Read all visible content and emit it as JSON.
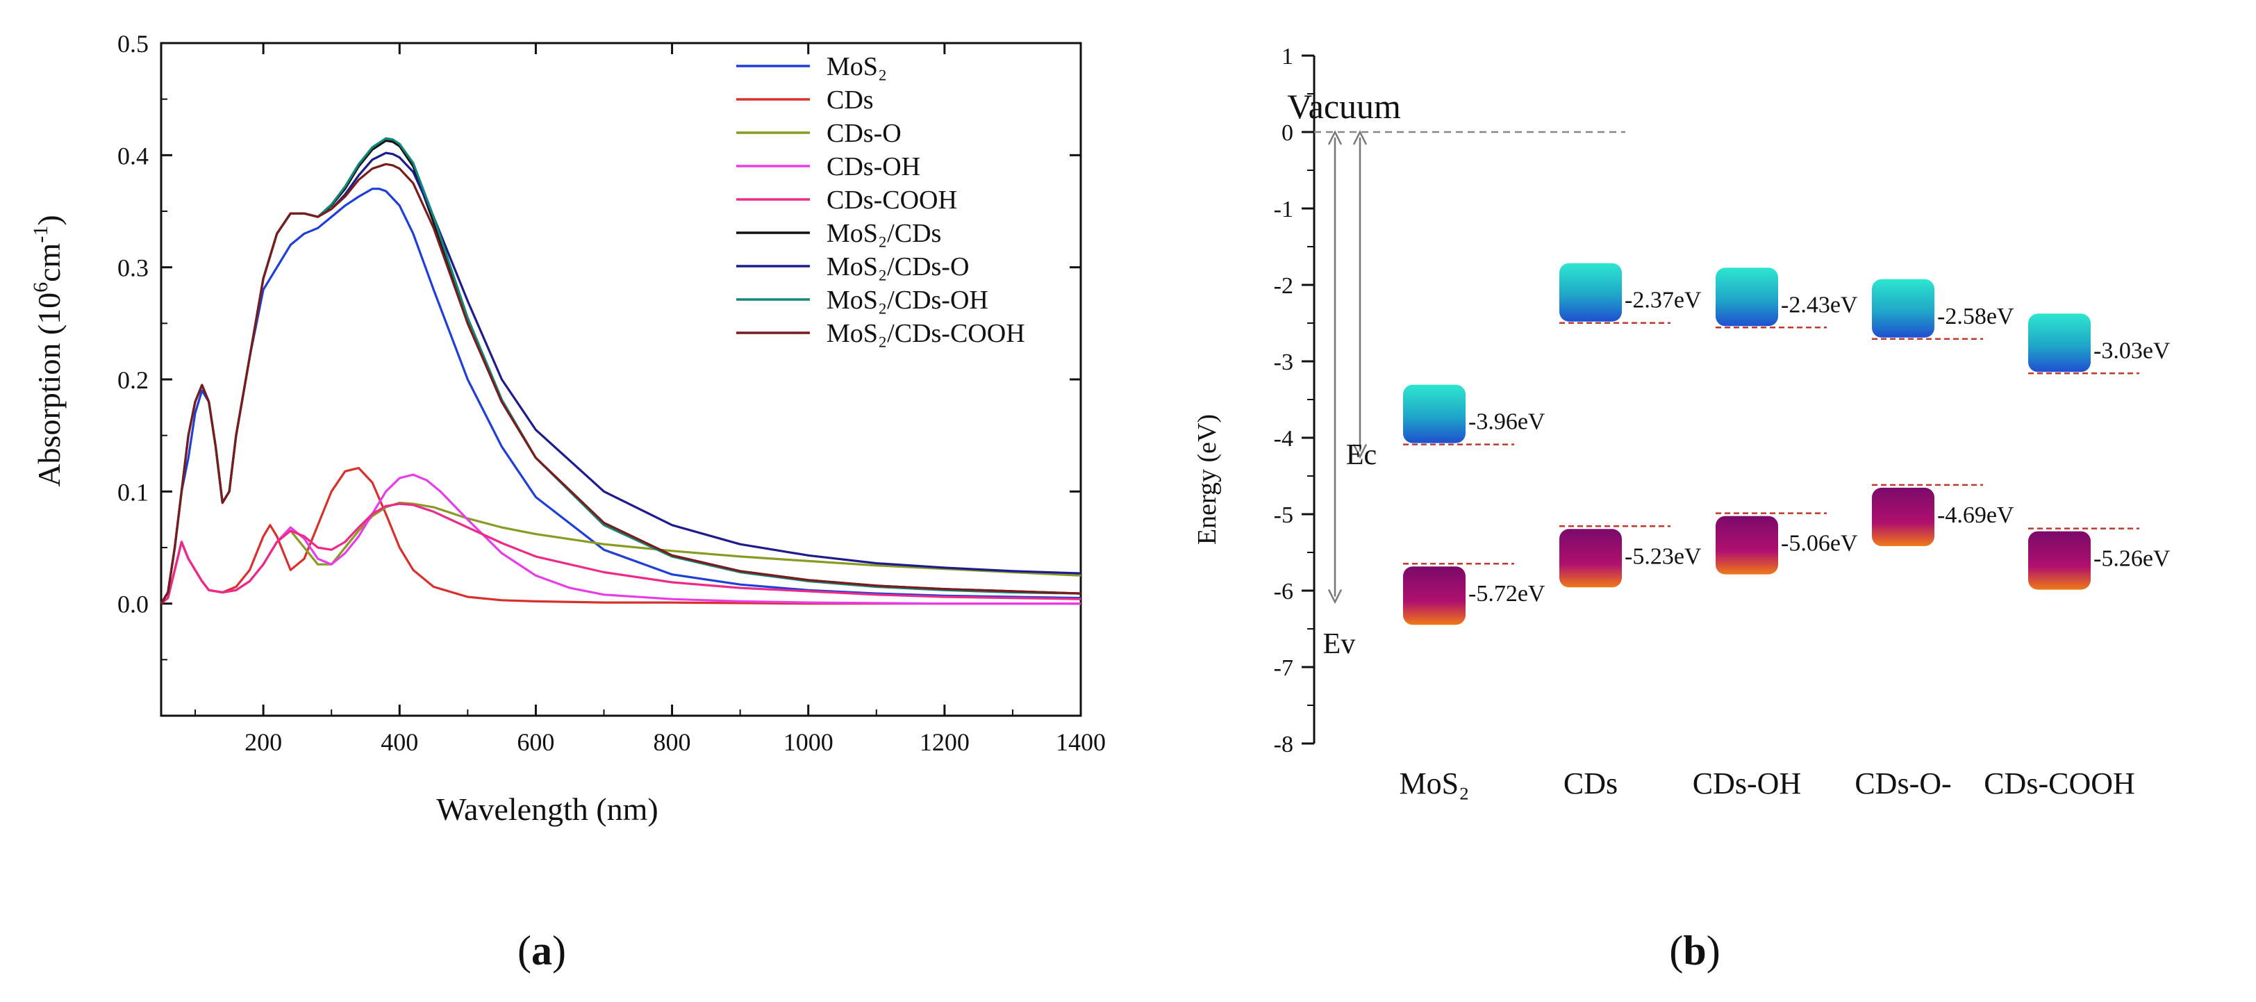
{
  "panel_a": {
    "caption": "a",
    "legend": [
      {
        "name": "MoS₂",
        "color": "#1f3fd6"
      },
      {
        "name": "CDs",
        "color": "#d9302c"
      },
      {
        "name": "CDs-O",
        "color": "#8a9a22"
      },
      {
        "name": "CDs-OH",
        "color": "#e83ce8"
      },
      {
        "name": "CDs-COOH",
        "color": "#ee2a88"
      },
      {
        "name": "MoS₂/CDs",
        "color": "#111111"
      },
      {
        "name": "MoS₂/CDs-O",
        "color": "#1c1c8c"
      },
      {
        "name": "MoS₂/CDs-OH",
        "color": "#14877a"
      },
      {
        "name": "MoS₂/CDs-COOH",
        "color": "#7a1c1c"
      }
    ]
  },
  "panel_b": {
    "caption": "b",
    "vacuum_label": "Vacuum",
    "ec_label": "Ec",
    "ev_label": "Ev"
  },
  "chart_data": [
    {
      "type": "line",
      "title": "",
      "xlabel": "Wavelength (nm)",
      "ylabel_main": "Absorption (10",
      "ylabel_sup": "6",
      "ylabel_mid": "cm",
      "ylabel_sup2": "-1",
      "ylabel_end": ")",
      "xlim": [
        50,
        1400
      ],
      "ylim": [
        -0.1,
        0.5
      ],
      "xticks": [
        200,
        400,
        600,
        800,
        1000,
        1200,
        1400
      ],
      "yticks": [
        0.0,
        0.1,
        0.2,
        0.3,
        0.4,
        0.5
      ],
      "xtick_labels": [
        "200",
        "400",
        "600",
        "800",
        "1000",
        "1200",
        "1400"
      ],
      "ytick_labels": [
        "0.0",
        "0.1",
        "0.2",
        "0.3",
        "0.4",
        "0.5"
      ],
      "series": [
        {
          "name": "MoS₂",
          "color": "#1f3fd6",
          "x": [
            50,
            60,
            70,
            80,
            90,
            100,
            110,
            120,
            130,
            140,
            150,
            160,
            180,
            200,
            220,
            240,
            260,
            280,
            300,
            320,
            340,
            360,
            370,
            380,
            400,
            420,
            450,
            500,
            550,
            600,
            700,
            800,
            900,
            1000,
            1100,
            1200,
            1300,
            1400
          ],
          "y": [
            0,
            0.01,
            0.05,
            0.1,
            0.13,
            0.17,
            0.19,
            0.18,
            0.14,
            0.09,
            0.1,
            0.15,
            0.22,
            0.28,
            0.3,
            0.32,
            0.33,
            0.335,
            0.345,
            0.355,
            0.363,
            0.37,
            0.37,
            0.368,
            0.355,
            0.33,
            0.28,
            0.2,
            0.14,
            0.095,
            0.048,
            0.026,
            0.017,
            0.012,
            0.009,
            0.007,
            0.006,
            0.005
          ]
        },
        {
          "name": "CDs",
          "color": "#d9302c",
          "x": [
            50,
            60,
            70,
            80,
            90,
            100,
            110,
            120,
            140,
            160,
            180,
            200,
            210,
            220,
            240,
            260,
            280,
            300,
            320,
            340,
            360,
            380,
            400,
            420,
            450,
            500,
            550,
            600,
            700,
            800,
            1000,
            1200,
            1400
          ],
          "y": [
            0,
            0.005,
            0.03,
            0.055,
            0.04,
            0.03,
            0.02,
            0.012,
            0.01,
            0.015,
            0.03,
            0.06,
            0.07,
            0.06,
            0.03,
            0.04,
            0.07,
            0.1,
            0.118,
            0.121,
            0.108,
            0.08,
            0.05,
            0.03,
            0.015,
            0.006,
            0.003,
            0.002,
            0.001,
            0.001,
            0.0,
            0.0,
            0.0
          ]
        },
        {
          "name": "CDs-O",
          "color": "#8a9a22",
          "x": [
            50,
            60,
            70,
            80,
            90,
            100,
            110,
            120,
            140,
            160,
            180,
            200,
            220,
            240,
            260,
            280,
            300,
            320,
            340,
            360,
            380,
            400,
            420,
            450,
            500,
            550,
            600,
            700,
            800,
            900,
            1000,
            1100,
            1200,
            1300,
            1400
          ],
          "y": [
            0,
            0.005,
            0.03,
            0.055,
            0.04,
            0.03,
            0.02,
            0.012,
            0.01,
            0.012,
            0.02,
            0.035,
            0.055,
            0.065,
            0.05,
            0.035,
            0.035,
            0.05,
            0.065,
            0.078,
            0.086,
            0.09,
            0.089,
            0.086,
            0.076,
            0.068,
            0.062,
            0.053,
            0.047,
            0.042,
            0.038,
            0.034,
            0.031,
            0.028,
            0.025
          ]
        },
        {
          "name": "CDs-OH",
          "color": "#e83ce8",
          "x": [
            50,
            60,
            70,
            80,
            90,
            100,
            110,
            120,
            140,
            160,
            180,
            200,
            220,
            240,
            260,
            280,
            300,
            320,
            340,
            360,
            380,
            400,
            420,
            440,
            460,
            500,
            550,
            600,
            650,
            700,
            800,
            900,
            1000,
            1200,
            1400
          ],
          "y": [
            0,
            0.005,
            0.03,
            0.055,
            0.04,
            0.03,
            0.02,
            0.012,
            0.01,
            0.012,
            0.02,
            0.035,
            0.055,
            0.068,
            0.058,
            0.04,
            0.035,
            0.045,
            0.06,
            0.08,
            0.1,
            0.112,
            0.115,
            0.11,
            0.1,
            0.075,
            0.045,
            0.025,
            0.014,
            0.008,
            0.004,
            0.002,
            0.001,
            0.0,
            0.0
          ]
        },
        {
          "name": "CDs-COOH",
          "color": "#ee2a88",
          "x": [
            50,
            60,
            70,
            80,
            90,
            100,
            110,
            120,
            140,
            160,
            180,
            200,
            220,
            240,
            260,
            280,
            300,
            320,
            340,
            360,
            380,
            400,
            420,
            450,
            500,
            550,
            600,
            700,
            800,
            900,
            1000,
            1100,
            1200,
            1300,
            1400
          ],
          "y": [
            0,
            0.005,
            0.03,
            0.055,
            0.04,
            0.03,
            0.02,
            0.012,
            0.01,
            0.012,
            0.02,
            0.035,
            0.055,
            0.065,
            0.06,
            0.05,
            0.048,
            0.055,
            0.068,
            0.08,
            0.087,
            0.089,
            0.088,
            0.082,
            0.068,
            0.054,
            0.042,
            0.028,
            0.019,
            0.014,
            0.011,
            0.008,
            0.006,
            0.005,
            0.004
          ]
        },
        {
          "name": "MoS₂/CDs",
          "color": "#111111",
          "x": [
            50,
            60,
            70,
            80,
            90,
            100,
            110,
            120,
            130,
            140,
            150,
            160,
            180,
            200,
            220,
            240,
            260,
            280,
            300,
            320,
            340,
            360,
            380,
            390,
            400,
            420,
            450,
            500,
            550,
            600,
            700,
            800,
            900,
            1000,
            1100,
            1200,
            1300,
            1400
          ],
          "y": [
            0,
            0.01,
            0.05,
            0.1,
            0.15,
            0.18,
            0.195,
            0.18,
            0.14,
            0.09,
            0.1,
            0.15,
            0.22,
            0.29,
            0.33,
            0.348,
            0.348,
            0.345,
            0.355,
            0.37,
            0.39,
            0.405,
            0.413,
            0.412,
            0.408,
            0.39,
            0.34,
            0.25,
            0.18,
            0.13,
            0.072,
            0.043,
            0.029,
            0.021,
            0.016,
            0.013,
            0.011,
            0.009
          ]
        },
        {
          "name": "MoS₂/CDs-O",
          "color": "#1c1c8c",
          "x": [
            50,
            60,
            70,
            80,
            90,
            100,
            110,
            120,
            130,
            140,
            150,
            160,
            180,
            200,
            220,
            240,
            260,
            280,
            300,
            320,
            340,
            360,
            380,
            390,
            400,
            420,
            450,
            500,
            550,
            600,
            700,
            800,
            900,
            1000,
            1100,
            1200,
            1300,
            1400
          ],
          "y": [
            0,
            0.01,
            0.05,
            0.1,
            0.15,
            0.18,
            0.195,
            0.18,
            0.14,
            0.09,
            0.1,
            0.15,
            0.22,
            0.29,
            0.33,
            0.348,
            0.348,
            0.345,
            0.352,
            0.365,
            0.382,
            0.396,
            0.402,
            0.401,
            0.398,
            0.385,
            0.345,
            0.27,
            0.2,
            0.155,
            0.1,
            0.07,
            0.053,
            0.043,
            0.036,
            0.032,
            0.029,
            0.027
          ]
        },
        {
          "name": "MoS₂/CDs-OH",
          "color": "#14877a",
          "x": [
            50,
            60,
            70,
            80,
            90,
            100,
            110,
            120,
            130,
            140,
            150,
            160,
            180,
            200,
            220,
            240,
            260,
            280,
            300,
            320,
            340,
            360,
            380,
            390,
            400,
            420,
            450,
            500,
            550,
            600,
            700,
            800,
            900,
            1000,
            1100,
            1200,
            1300,
            1400
          ],
          "y": [
            0,
            0.01,
            0.05,
            0.1,
            0.15,
            0.18,
            0.195,
            0.18,
            0.14,
            0.09,
            0.1,
            0.15,
            0.22,
            0.29,
            0.33,
            0.348,
            0.348,
            0.345,
            0.356,
            0.372,
            0.392,
            0.407,
            0.415,
            0.414,
            0.41,
            0.393,
            0.345,
            0.255,
            0.182,
            0.13,
            0.07,
            0.042,
            0.028,
            0.02,
            0.015,
            0.012,
            0.01,
            0.009
          ]
        },
        {
          "name": "MoS₂/CDs-COOH",
          "color": "#7a1c1c",
          "x": [
            50,
            60,
            70,
            80,
            90,
            100,
            110,
            120,
            130,
            140,
            150,
            160,
            180,
            200,
            220,
            240,
            260,
            280,
            300,
            320,
            340,
            360,
            380,
            390,
            400,
            420,
            450,
            500,
            550,
            600,
            700,
            800,
            900,
            1000,
            1100,
            1200,
            1300,
            1400
          ],
          "y": [
            0,
            0.01,
            0.05,
            0.1,
            0.15,
            0.18,
            0.195,
            0.18,
            0.14,
            0.09,
            0.1,
            0.15,
            0.22,
            0.29,
            0.33,
            0.348,
            0.348,
            0.345,
            0.352,
            0.363,
            0.378,
            0.388,
            0.392,
            0.391,
            0.388,
            0.375,
            0.335,
            0.25,
            0.18,
            0.13,
            0.072,
            0.043,
            0.029,
            0.021,
            0.016,
            0.013,
            0.011,
            0.009
          ]
        }
      ]
    },
    {
      "type": "energy-level-diagram",
      "title": "",
      "ylabel": "Energy (eV)",
      "ylim": [
        -8,
        1
      ],
      "yticks": [
        1,
        0,
        -1,
        -2,
        -3,
        -4,
        -5,
        -6,
        -7,
        -8
      ],
      "ytick_labels": [
        "1",
        "0",
        "-1",
        "-2",
        "-3",
        "-4",
        "-5",
        "-6",
        "-7",
        "-8"
      ],
      "vacuum_level": 0,
      "materials": [
        {
          "name": "MoS₂",
          "conduction": -3.96,
          "valence": -5.72,
          "cb_label": "-3.96eV",
          "vb_label": "-5.72eV"
        },
        {
          "name": "CDs",
          "conduction": -2.37,
          "valence": -5.23,
          "cb_label": "-2.37eV",
          "vb_label": "-5.23eV"
        },
        {
          "name": "CDs-OH",
          "conduction": -2.43,
          "valence": -5.06,
          "cb_label": "-2.43eV",
          "vb_label": "-5.06eV"
        },
        {
          "name": "CDs-O-",
          "conduction": -2.58,
          "valence": -4.69,
          "cb_label": "-2.58eV",
          "vb_label": "-4.69eV"
        },
        {
          "name": "CDs-COOH",
          "conduction": -3.03,
          "valence": -5.26,
          "cb_label": "-3.03eV",
          "vb_label": "-5.26eV"
        }
      ]
    }
  ]
}
